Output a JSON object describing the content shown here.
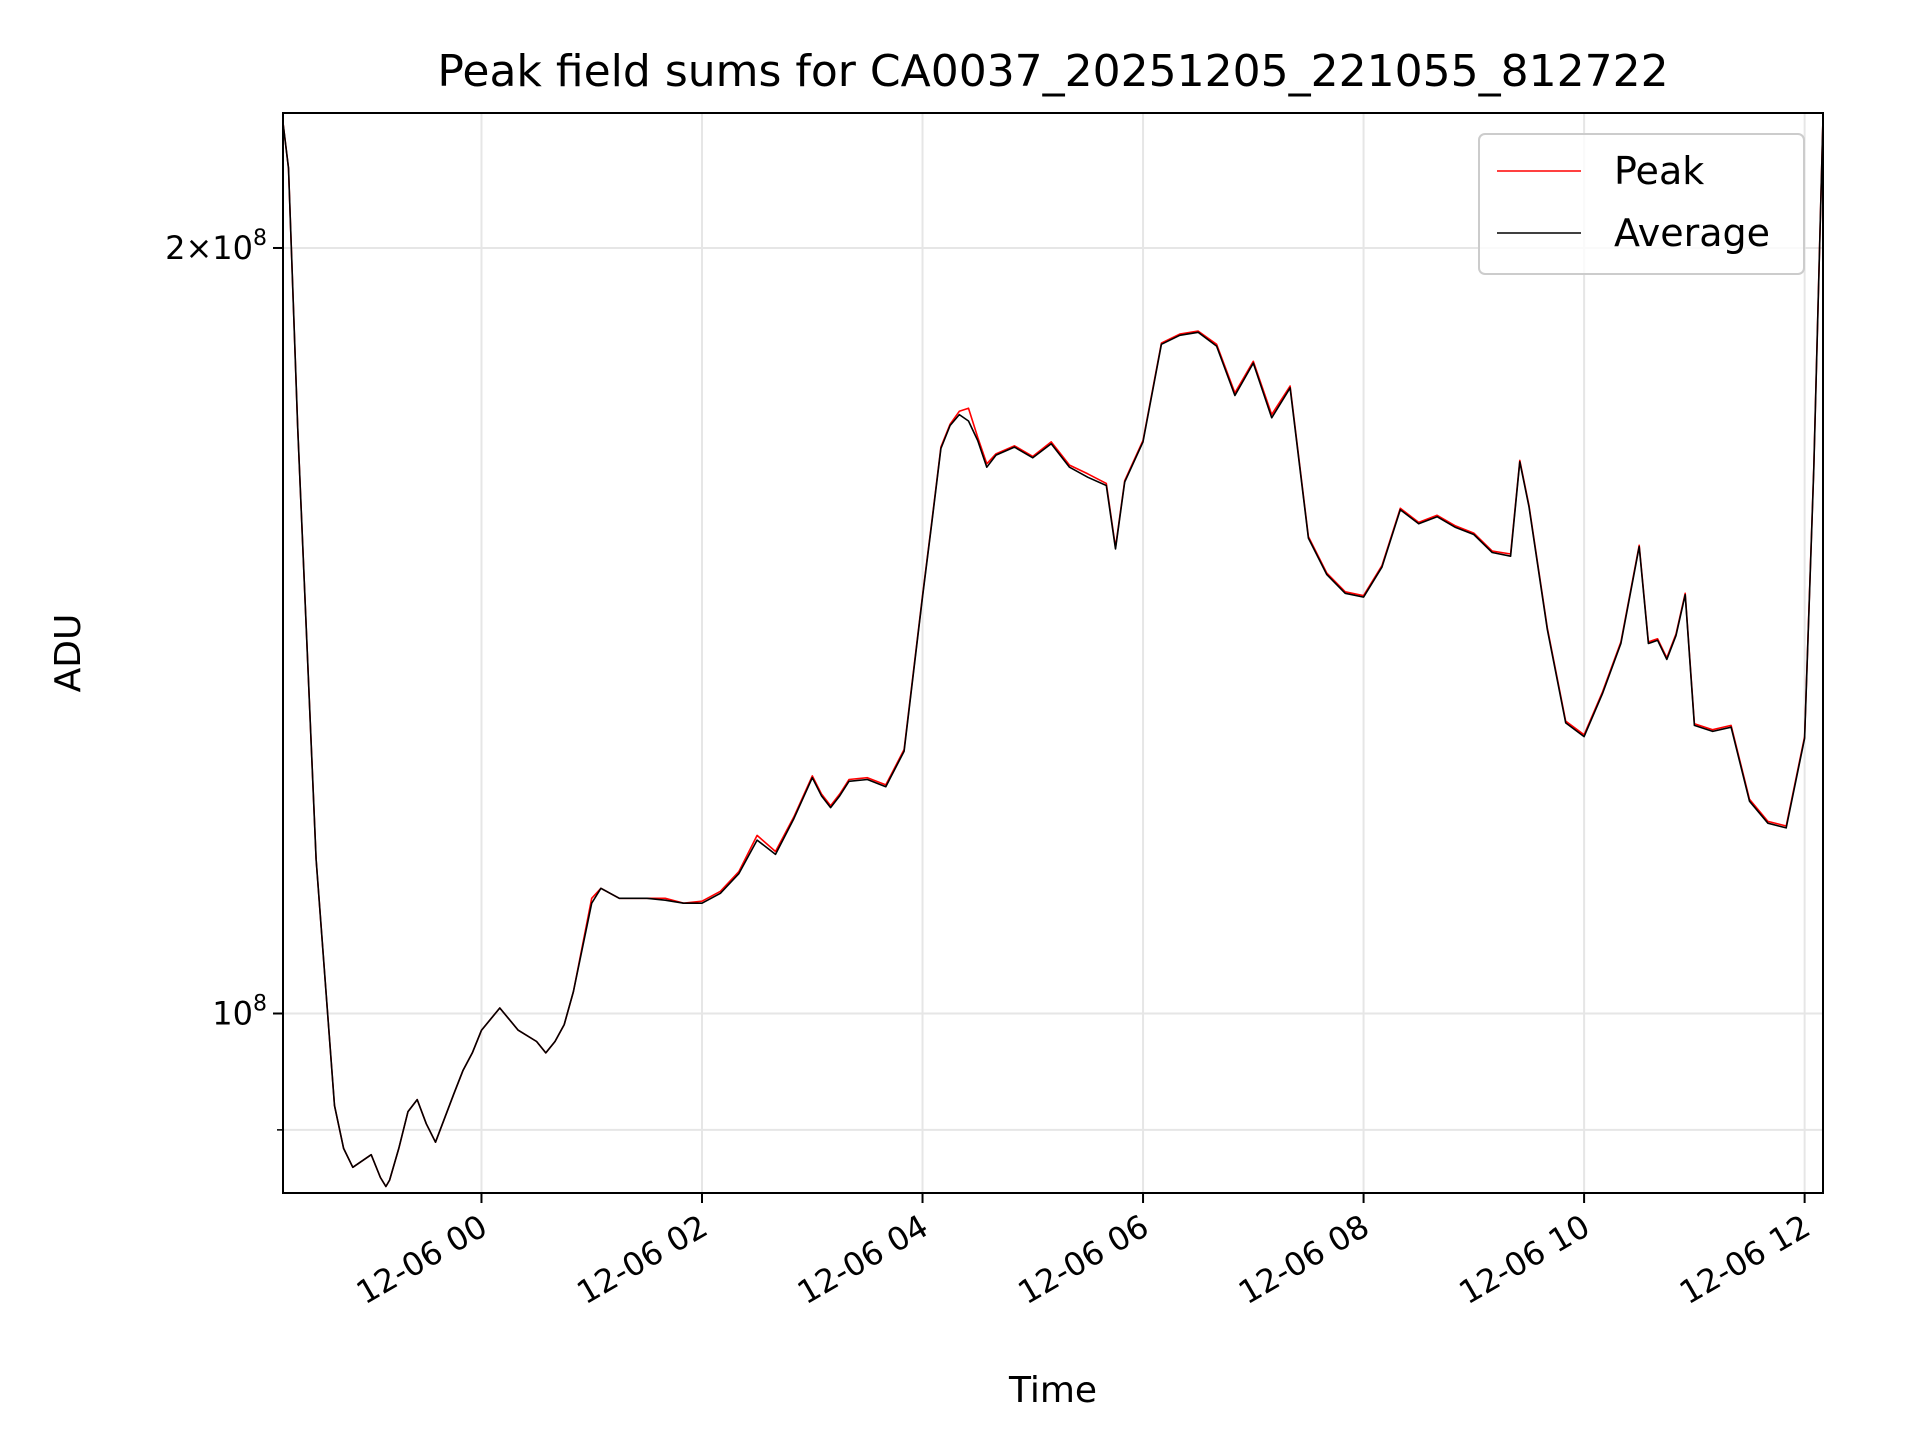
{
  "chart_data": {
    "type": "line",
    "title": "Peak field sums for CA0037_20251205_221055_812722",
    "xlabel": "Time",
    "ylabel": "ADU",
    "yscale": "log",
    "grid": true,
    "legend_position": "upper right",
    "xlim": [
      "2025-12-05 22:12",
      "2025-12-06 12:10"
    ],
    "ylim": [
      85000000,
      226000000
    ],
    "x_ticks": [
      {
        "value": "2025-12-06 00:00",
        "label": "12-06 00"
      },
      {
        "value": "2025-12-06 02:00",
        "label": "12-06 02"
      },
      {
        "value": "2025-12-06 04:00",
        "label": "12-06 04"
      },
      {
        "value": "2025-12-06 06:00",
        "label": "12-06 06"
      },
      {
        "value": "2025-12-06 08:00",
        "label": "12-06 08"
      },
      {
        "value": "2025-12-06 10:00",
        "label": "12-06 10"
      },
      {
        "value": "2025-12-06 12:00",
        "label": "12-06 12"
      }
    ],
    "y_ticks": [
      {
        "value": 100000000,
        "mantissa": "",
        "base": "10",
        "exp": "8"
      },
      {
        "value": 200000000,
        "mantissa": "2×",
        "base": "10",
        "exp": "8"
      }
    ],
    "y_minor_ticks": [
      90000000
    ],
    "series": [
      {
        "name": "Peak",
        "color": "#ff0000",
        "x": [
          "2025-12-05 22:12",
          "2025-12-05 22:15",
          "2025-12-05 22:20",
          "2025-12-05 22:30",
          "2025-12-05 22:40",
          "2025-12-05 22:45",
          "2025-12-05 22:50",
          "2025-12-05 23:00",
          "2025-12-05 23:05",
          "2025-12-05 23:08",
          "2025-12-05 23:10",
          "2025-12-05 23:15",
          "2025-12-05 23:20",
          "2025-12-05 23:25",
          "2025-12-05 23:30",
          "2025-12-05 23:35",
          "2025-12-05 23:45",
          "2025-12-05 23:50",
          "2025-12-05 23:55",
          "2025-12-06 00:00",
          "2025-12-06 00:10",
          "2025-12-06 00:20",
          "2025-12-06 00:30",
          "2025-12-06 00:35",
          "2025-12-06 00:40",
          "2025-12-06 00:45",
          "2025-12-06 00:50",
          "2025-12-06 01:00",
          "2025-12-06 01:05",
          "2025-12-06 01:10",
          "2025-12-06 01:15",
          "2025-12-06 01:20",
          "2025-12-06 01:30",
          "2025-12-06 01:40",
          "2025-12-06 01:50",
          "2025-12-06 02:00",
          "2025-12-06 02:10",
          "2025-12-06 02:20",
          "2025-12-06 02:30",
          "2025-12-06 02:40",
          "2025-12-06 02:50",
          "2025-12-06 03:00",
          "2025-12-06 03:05",
          "2025-12-06 03:10",
          "2025-12-06 03:15",
          "2025-12-06 03:20",
          "2025-12-06 03:30",
          "2025-12-06 03:40",
          "2025-12-06 03:50",
          "2025-12-06 04:00",
          "2025-12-06 04:05",
          "2025-12-06 04:10",
          "2025-12-06 04:15",
          "2025-12-06 04:20",
          "2025-12-06 04:25",
          "2025-12-06 04:30",
          "2025-12-06 04:35",
          "2025-12-06 04:40",
          "2025-12-06 04:50",
          "2025-12-06 05:00",
          "2025-12-06 05:10",
          "2025-12-06 05:20",
          "2025-12-06 05:30",
          "2025-12-06 05:40",
          "2025-12-06 05:45",
          "2025-12-06 05:50",
          "2025-12-06 06:00",
          "2025-12-06 06:10",
          "2025-12-06 06:20",
          "2025-12-06 06:30",
          "2025-12-06 06:40",
          "2025-12-06 06:50",
          "2025-12-06 07:00",
          "2025-12-06 07:10",
          "2025-12-06 07:20",
          "2025-12-06 07:30",
          "2025-12-06 07:40",
          "2025-12-06 07:50",
          "2025-12-06 08:00",
          "2025-12-06 08:10",
          "2025-12-06 08:20",
          "2025-12-06 08:30",
          "2025-12-06 08:40",
          "2025-12-06 08:50",
          "2025-12-06 09:00",
          "2025-12-06 09:10",
          "2025-12-06 09:20",
          "2025-12-06 09:25",
          "2025-12-06 09:30",
          "2025-12-06 09:40",
          "2025-12-06 09:50",
          "2025-12-06 10:00",
          "2025-12-06 10:10",
          "2025-12-06 10:20",
          "2025-12-06 10:30",
          "2025-12-06 10:35",
          "2025-12-06 10:40",
          "2025-12-06 10:45",
          "2025-12-06 10:50",
          "2025-12-06 10:55",
          "2025-12-06 11:00",
          "2025-12-06 11:10",
          "2025-12-06 11:20",
          "2025-12-06 11:30",
          "2025-12-06 11:40",
          "2025-12-06 11:50",
          "2025-12-06 12:00",
          "2025-12-06 12:05",
          "2025-12-06 12:10"
        ],
        "values": [
          224000000,
          215000000,
          170000000,
          115000000,
          92000000,
          88500000,
          87000000,
          88000000,
          86200000,
          85500000,
          86000000,
          88500000,
          91500000,
          92500000,
          90500000,
          89000000,
          93000000,
          95000000,
          96500000,
          98500000,
          100500000,
          98500000,
          97500000,
          96500000,
          97500000,
          99000000,
          102000000,
          111000000,
          112000000,
          111500000,
          111000000,
          111000000,
          111000000,
          111000000,
          110500000,
          110700000,
          111700000,
          113700000,
          117500000,
          115800000,
          119500000,
          124000000,
          122000000,
          120700000,
          122000000,
          123600000,
          123800000,
          123000000,
          127000000,
          146000000,
          156000000,
          167000000,
          170500000,
          172500000,
          173000000,
          168500000,
          164500000,
          166000000,
          167200000,
          165600000,
          167800000,
          164300000,
          163000000,
          161600000,
          152500000,
          162000000,
          168000000,
          183500000,
          185000000,
          185500000,
          183300000,
          175400000,
          180500000,
          172000000,
          176500000,
          154000000,
          149000000,
          146500000,
          146000000,
          150000000,
          158000000,
          156000000,
          157000000,
          155500000,
          154500000,
          152000000,
          151600000,
          165000000,
          158400000,
          141800000,
          130300000,
          128700000,
          133800000,
          140000000,
          152800000,
          140000000,
          140400000,
          138000000,
          141000000,
          146300000,
          130000000,
          129300000,
          129800000,
          121400000,
          119000000,
          118500000,
          128500000,
          164000000,
          225000000
        ]
      },
      {
        "name": "Average",
        "color": "#000000",
        "x": [
          "2025-12-05 22:12",
          "2025-12-05 22:15",
          "2025-12-05 22:20",
          "2025-12-05 22:30",
          "2025-12-05 22:40",
          "2025-12-05 22:45",
          "2025-12-05 22:50",
          "2025-12-05 23:00",
          "2025-12-05 23:05",
          "2025-12-05 23:08",
          "2025-12-05 23:10",
          "2025-12-05 23:15",
          "2025-12-05 23:20",
          "2025-12-05 23:25",
          "2025-12-05 23:30",
          "2025-12-05 23:35",
          "2025-12-05 23:45",
          "2025-12-05 23:50",
          "2025-12-05 23:55",
          "2025-12-06 00:00",
          "2025-12-06 00:10",
          "2025-12-06 00:20",
          "2025-12-06 00:30",
          "2025-12-06 00:35",
          "2025-12-06 00:40",
          "2025-12-06 00:45",
          "2025-12-06 00:50",
          "2025-12-06 01:00",
          "2025-12-06 01:05",
          "2025-12-06 01:10",
          "2025-12-06 01:15",
          "2025-12-06 01:20",
          "2025-12-06 01:30",
          "2025-12-06 01:40",
          "2025-12-06 01:50",
          "2025-12-06 02:00",
          "2025-12-06 02:10",
          "2025-12-06 02:20",
          "2025-12-06 02:30",
          "2025-12-06 02:40",
          "2025-12-06 02:50",
          "2025-12-06 03:00",
          "2025-12-06 03:05",
          "2025-12-06 03:10",
          "2025-12-06 03:15",
          "2025-12-06 03:20",
          "2025-12-06 03:30",
          "2025-12-06 03:40",
          "2025-12-06 03:50",
          "2025-12-06 04:00",
          "2025-12-06 04:05",
          "2025-12-06 04:10",
          "2025-12-06 04:15",
          "2025-12-06 04:20",
          "2025-12-06 04:25",
          "2025-12-06 04:30",
          "2025-12-06 04:35",
          "2025-12-06 04:40",
          "2025-12-06 04:50",
          "2025-12-06 05:00",
          "2025-12-06 05:10",
          "2025-12-06 05:20",
          "2025-12-06 05:30",
          "2025-12-06 05:40",
          "2025-12-06 05:45",
          "2025-12-06 05:50",
          "2025-12-06 06:00",
          "2025-12-06 06:10",
          "2025-12-06 06:20",
          "2025-12-06 06:30",
          "2025-12-06 06:40",
          "2025-12-06 06:50",
          "2025-12-06 07:00",
          "2025-12-06 07:10",
          "2025-12-06 07:20",
          "2025-12-06 07:30",
          "2025-12-06 07:40",
          "2025-12-06 07:50",
          "2025-12-06 08:00",
          "2025-12-06 08:10",
          "2025-12-06 08:20",
          "2025-12-06 08:30",
          "2025-12-06 08:40",
          "2025-12-06 08:50",
          "2025-12-06 09:00",
          "2025-12-06 09:10",
          "2025-12-06 09:20",
          "2025-12-06 09:25",
          "2025-12-06 09:30",
          "2025-12-06 09:40",
          "2025-12-06 09:50",
          "2025-12-06 10:00",
          "2025-12-06 10:10",
          "2025-12-06 10:20",
          "2025-12-06 10:30",
          "2025-12-06 10:35",
          "2025-12-06 10:40",
          "2025-12-06 10:45",
          "2025-12-06 10:50",
          "2025-12-06 10:55",
          "2025-12-06 11:00",
          "2025-12-06 11:10",
          "2025-12-06 11:20",
          "2025-12-06 11:30",
          "2025-12-06 11:40",
          "2025-12-06 11:50",
          "2025-12-06 12:00",
          "2025-12-06 12:05",
          "2025-12-06 12:10"
        ],
        "values": [
          224000000,
          215000000,
          170000000,
          115000000,
          92000000,
          88500000,
          87000000,
          88000000,
          86200000,
          85500000,
          86000000,
          88500000,
          91500000,
          92500000,
          90500000,
          89000000,
          93000000,
          95000000,
          96500000,
          98500000,
          100500000,
          98500000,
          97500000,
          96500000,
          97500000,
          99000000,
          102000000,
          110500000,
          112000000,
          111500000,
          111000000,
          111000000,
          111000000,
          110800000,
          110500000,
          110500000,
          111500000,
          113500000,
          117000000,
          115500000,
          119300000,
          123800000,
          121800000,
          120500000,
          121800000,
          123400000,
          123600000,
          122800000,
          126800000,
          145800000,
          155800000,
          166800000,
          170300000,
          172000000,
          171000000,
          168000000,
          164000000,
          165800000,
          167000000,
          165400000,
          167500000,
          164000000,
          162500000,
          161300000,
          152300000,
          161800000,
          167800000,
          183300000,
          184800000,
          185300000,
          183000000,
          175000000,
          180200000,
          171500000,
          176200000,
          153800000,
          148800000,
          146300000,
          145800000,
          149800000,
          157800000,
          155800000,
          156800000,
          155300000,
          154300000,
          151800000,
          151300000,
          164800000,
          158200000,
          141600000,
          130100000,
          128500000,
          133600000,
          139800000,
          152600000,
          139800000,
          140200000,
          137800000,
          140800000,
          146100000,
          129800000,
          129100000,
          129600000,
          121200000,
          118800000,
          118300000,
          128300000,
          163800000,
          225000000
        ]
      }
    ]
  }
}
